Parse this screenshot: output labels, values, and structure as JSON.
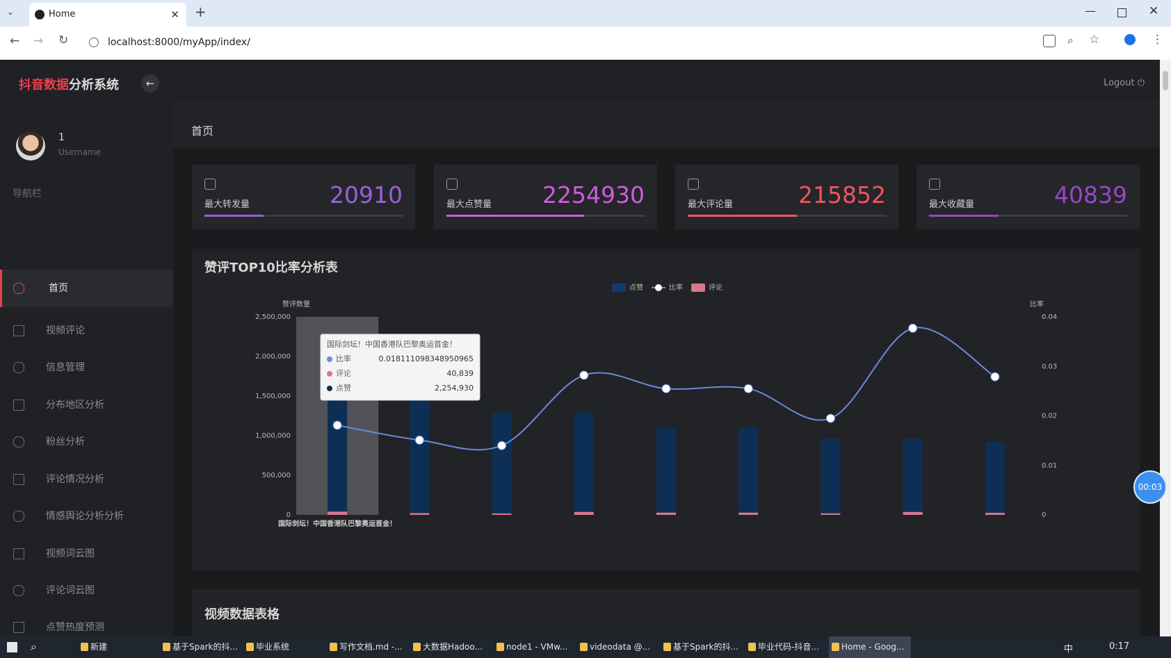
{
  "browser": {
    "tab_title": "Home",
    "url": "localhost:8000/myApp/index/"
  },
  "app": {
    "brand_highlight": "抖音数据",
    "brand_rest": "分析系统",
    "logout": "Logout",
    "user": {
      "name": "1",
      "role": "Username"
    },
    "nav_heading": "导航栏",
    "nav": [
      "首页",
      "视频评论",
      "信息管理",
      "分布地区分析",
      "粉丝分析",
      "评论情况分析",
      "情感舆论分析分析",
      "视频词云图",
      "评论词云图",
      "点赞热度预测"
    ],
    "breadcrumb": "首页"
  },
  "stats": [
    {
      "label": "最大转发量",
      "value": 20910,
      "color": "#9b5fe0"
    },
    {
      "label": "最大点赞量",
      "value": 2254930,
      "color": "#d05be0"
    },
    {
      "label": "最大评论量",
      "value": 215852,
      "color": "#f0545e"
    },
    {
      "label": "最大收藏量",
      "value": 40839,
      "color": "#9a45c8"
    }
  ],
  "chart_data": {
    "type": "bar",
    "title": "赞评TOP10比率分析表",
    "ylabel": "赞评数量",
    "y2label": "比率",
    "categories": [
      "国际剑坛！中国香港队巴黎奥运首金！",
      null,
      null,
      null,
      null,
      null,
      null,
      null,
      null
    ],
    "series": [
      {
        "name": "点赞",
        "color": "#0d2f55",
        "values": [
          2254930,
          1460000,
          1290000,
          1290000,
          1100000,
          1100000,
          960000,
          960000,
          920000
        ]
      },
      {
        "name": "比率",
        "type": "line",
        "axis": "y2",
        "color": "#6a8be0",
        "values": [
          0.0181,
          0.0151,
          0.014,
          0.0282,
          0.0255,
          0.0255,
          0.0195,
          0.0377,
          0.0279
        ]
      },
      {
        "name": "评论",
        "color": "#d9778f",
        "values": [
          40839,
          22000,
          18000,
          36400,
          28000,
          28000,
          18700,
          36200,
          25700
        ]
      }
    ],
    "ylim": [
      0,
      2500000
    ],
    "yticks": [
      0,
      {
        "value": 500000,
        "label": "500,000"
      },
      {
        "value": 1000000,
        "label": "1,000,000"
      },
      {
        "value": 1500000,
        "label": "1,500,000"
      },
      {
        "value": 2000000,
        "label": "2,000,000"
      },
      {
        "value": 2500000,
        "label": "2,500,000"
      }
    ],
    "y2lim": [
      0,
      0.04
    ],
    "y2ticks": [
      0,
      0.01,
      0.02,
      0.03,
      0.04
    ],
    "grid": false,
    "legend": "top"
  },
  "tooltip": {
    "title": "国际剑坛！中国香港队巴黎奥运首金！",
    "rows": [
      {
        "name": "比率",
        "label": "0.018111098348950965"
      },
      {
        "name": "评论",
        "label": "40,839"
      },
      {
        "name": "点赞",
        "label": "2,254,930"
      }
    ]
  },
  "section_title": "视频数据表格",
  "taskbar": {
    "items": [
      "新建",
      "基于Spark的抖...",
      "毕业系统",
      "写作文档.md -...",
      "大数据Hadoo...",
      "node1 - VMw...",
      "videodata @...",
      "基于Spark的抖...",
      "毕业代码-抖音...",
      "Home - Goog..."
    ],
    "ime": "中",
    "time": "0:17"
  },
  "timer": "00:03"
}
